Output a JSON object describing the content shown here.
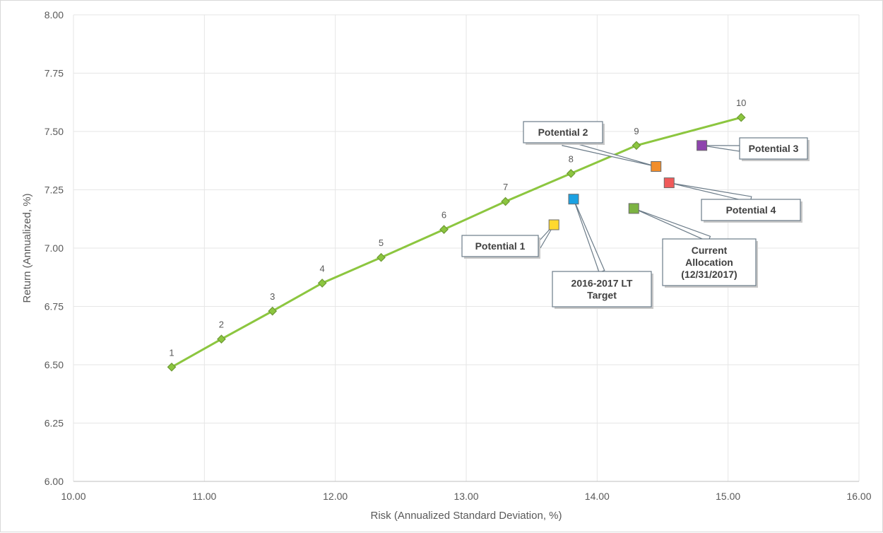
{
  "chart_data": {
    "type": "scatter",
    "xlabel": "Risk (Annualized Standard Deviation, %)",
    "ylabel": "Return (Annualized, %)",
    "xlim": [
      10.0,
      16.0
    ],
    "ylim": [
      6.0,
      8.0
    ],
    "x_ticks": [
      "10.00",
      "11.00",
      "12.00",
      "13.00",
      "14.00",
      "15.00",
      "16.00"
    ],
    "y_ticks": [
      "6.00",
      "6.25",
      "6.50",
      "6.75",
      "7.00",
      "7.25",
      "7.50",
      "7.75",
      "8.00"
    ],
    "grid": true,
    "frontier": {
      "color": "#8cc63f",
      "marker_color": "#6e9a35",
      "points": [
        {
          "label": "1",
          "x": 10.75,
          "y": 6.49
        },
        {
          "label": "2",
          "x": 11.13,
          "y": 6.61
        },
        {
          "label": "3",
          "x": 11.52,
          "y": 6.73
        },
        {
          "label": "4",
          "x": 11.9,
          "y": 6.85
        },
        {
          "label": "5",
          "x": 12.35,
          "y": 6.96
        },
        {
          "label": "6",
          "x": 12.83,
          "y": 7.08
        },
        {
          "label": "7",
          "x": 13.3,
          "y": 7.2
        },
        {
          "label": "8",
          "x": 13.8,
          "y": 7.32
        },
        {
          "label": "9",
          "x": 14.3,
          "y": 7.44
        },
        {
          "label": "10",
          "x": 15.1,
          "y": 7.56
        }
      ]
    },
    "portfolios": [
      {
        "label": [
          "Potential 1"
        ],
        "x": 13.67,
        "y": 7.1,
        "color": "#ffd92f"
      },
      {
        "label": [
          "2016-2017 LT",
          "Target"
        ],
        "x": 13.82,
        "y": 7.21,
        "color": "#1ba1e2"
      },
      {
        "label": [
          "Potential 2"
        ],
        "x": 14.45,
        "y": 7.35,
        "color": "#f28e2b"
      },
      {
        "label": [
          "Potential 4"
        ],
        "x": 14.55,
        "y": 7.28,
        "color": "#f05a5a"
      },
      {
        "label": [
          "Potential 3"
        ],
        "x": 14.8,
        "y": 7.44,
        "color": "#8e44ad"
      },
      {
        "label": [
          "Current",
          "Allocation",
          "(12/31/2017)"
        ],
        "x": 14.28,
        "y": 7.17,
        "color": "#7cb342"
      }
    ]
  }
}
